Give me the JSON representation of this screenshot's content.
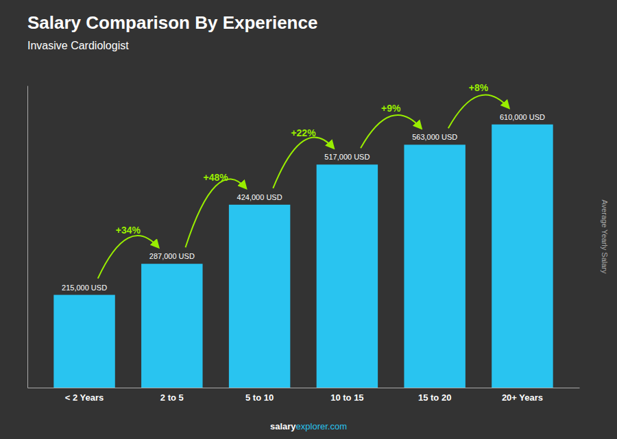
{
  "chart_data": {
    "type": "bar",
    "title": "Salary Comparison By Experience",
    "subtitle": "Invasive Cardiologist",
    "categories": [
      "< 2 Years",
      "2 to 5",
      "5 to 10",
      "10 to 15",
      "15 to 20",
      "20+ Years"
    ],
    "values": [
      215000,
      287000,
      424000,
      517000,
      563000,
      610000
    ],
    "value_labels": [
      "215,000 USD",
      "287,000 USD",
      "424,000 USD",
      "517,000 USD",
      "563,000 USD",
      "610,000 USD"
    ],
    "data_labels": true,
    "annotations": [
      "+34%",
      "+48%",
      "+22%",
      "+9%",
      "+8%"
    ],
    "y_label": "Average Yearly Salary",
    "footer": [
      "salary",
      "explorer.com"
    ],
    "color": "#29c4f0",
    "ylim": [
      0,
      700000
    ],
    "tick_labels": "x"
  }
}
